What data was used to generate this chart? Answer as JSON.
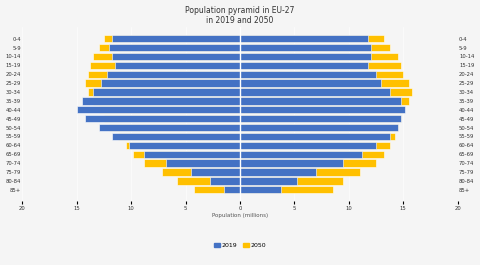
{
  "title": "Population pyramid in EU-27\nin 2019 and 2050",
  "age_groups": [
    "85+",
    "80-84",
    "75-79",
    "70-74",
    "65-69",
    "60-64",
    "55-59",
    "50-54",
    "45-49",
    "40-44",
    "35-39",
    "30-34",
    "25-29",
    "20-24",
    "15-19",
    "10-14",
    "5-9",
    "0-4"
  ],
  "males_2019": [
    1.5,
    2.8,
    4.5,
    6.8,
    8.8,
    10.2,
    11.8,
    13.0,
    14.2,
    15.0,
    14.5,
    13.5,
    12.8,
    12.2,
    11.5,
    11.8,
    12.0,
    11.8
  ],
  "females_2019": [
    3.8,
    5.2,
    7.0,
    9.5,
    11.2,
    12.5,
    13.8,
    14.5,
    14.8,
    15.2,
    14.8,
    13.8,
    13.0,
    12.5,
    11.8,
    12.0,
    12.0,
    11.8
  ],
  "males_2050": [
    4.2,
    5.8,
    7.2,
    8.8,
    9.8,
    10.5,
    11.2,
    12.0,
    12.5,
    13.0,
    13.5,
    14.0,
    14.2,
    14.0,
    13.8,
    13.5,
    13.0,
    12.5
  ],
  "females_2050": [
    8.5,
    9.5,
    11.0,
    12.5,
    13.2,
    13.8,
    14.2,
    14.5,
    14.8,
    15.0,
    15.5,
    15.8,
    15.5,
    15.0,
    14.8,
    14.5,
    13.8,
    13.2
  ],
  "color_2019": "#4472C4",
  "color_2050": "#FFC000",
  "xlim": 20,
  "xtick_step": 5,
  "legend_2019": "2019",
  "legend_2050": "2050",
  "xlabel": "Population (millions)",
  "background_color": "#f5f5f5"
}
